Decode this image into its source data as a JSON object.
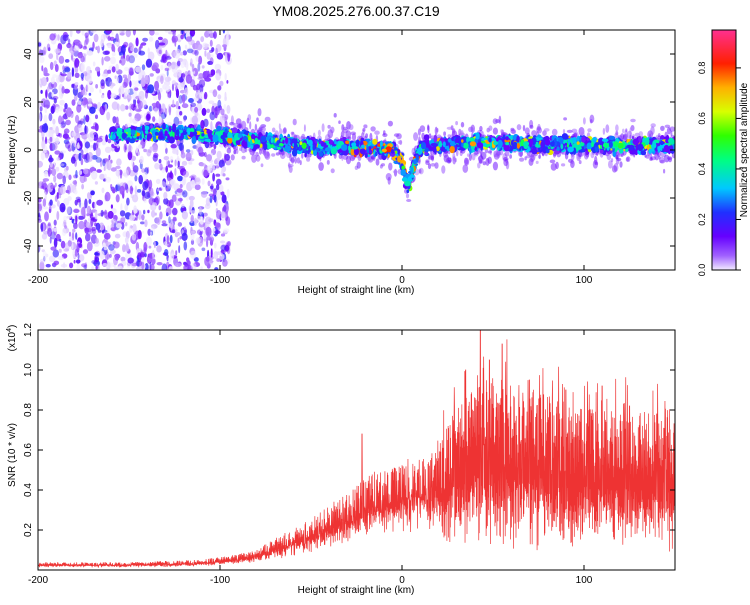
{
  "title": "YM08.2025.276.00.37.C19",
  "colors": {
    "snr_line": "#ee3333",
    "background": "#ffffff"
  },
  "chart_data": [
    {
      "type": "heatmap",
      "name": "spectrogram",
      "xlabel": "Height of straight line (km)",
      "ylabel": "Frequency (Hz)",
      "xlim": [
        -200,
        150
      ],
      "ylim": [
        -50,
        50
      ],
      "xticks": [
        -200,
        -100,
        0,
        100
      ],
      "yticks": [
        -40,
        -20,
        0,
        20,
        40
      ],
      "colorbar": {
        "label": "Normalized spectral amplitude",
        "range": [
          0,
          0.95
        ],
        "ticks": [
          "0.0",
          "0.2",
          "0.4",
          "0.6",
          "0.8"
        ],
        "colormap": "rainbow (violet -> blue -> cyan -> green -> yellow -> red -> pink)"
      },
      "ridge_center_hz": [
        [
          -160,
          6
        ],
        [
          -140,
          7
        ],
        [
          -120,
          7
        ],
        [
          -100,
          6
        ],
        [
          -80,
          4
        ],
        [
          -60,
          2
        ],
        [
          -40,
          1
        ],
        [
          -20,
          1
        ],
        [
          -5,
          0
        ],
        [
          0,
          -5
        ],
        [
          2,
          -12
        ],
        [
          4,
          -15
        ],
        [
          6,
          -8
        ],
        [
          10,
          1
        ],
        [
          20,
          2
        ],
        [
          40,
          3
        ],
        [
          60,
          3
        ],
        [
          80,
          2
        ],
        [
          100,
          2
        ],
        [
          120,
          2
        ],
        [
          150,
          2
        ]
      ],
      "noise_region_x": [
        -200,
        -95
      ]
    },
    {
      "type": "line",
      "name": "snr",
      "xlabel": "Height of straight line (km)",
      "ylabel": "SNR (10 * v/v)",
      "scale_label": "(x10",
      "scale_exponent": "4",
      "xlim": [
        -200,
        150
      ],
      "ylim": [
        0,
        1.2
      ],
      "xticks": [
        -200,
        -100,
        0,
        100
      ],
      "yticks": [
        "0.2",
        "0.4",
        "0.6",
        "0.8",
        "1.0",
        "1.2"
      ],
      "envelope": [
        [
          -200,
          0.03
        ],
        [
          -150,
          0.03
        ],
        [
          -110,
          0.04
        ],
        [
          -90,
          0.06
        ],
        [
          -80,
          0.08
        ],
        [
          -70,
          0.12
        ],
        [
          -50,
          0.2
        ],
        [
          -30,
          0.3
        ],
        [
          -15,
          0.38
        ],
        [
          -5,
          0.4
        ],
        [
          0,
          0.42
        ],
        [
          10,
          0.45
        ],
        [
          20,
          0.5
        ],
        [
          30,
          0.62
        ],
        [
          40,
          0.75
        ],
        [
          50,
          0.75
        ],
        [
          70,
          0.7
        ],
        [
          100,
          0.62
        ],
        [
          130,
          0.62
        ],
        [
          150,
          0.62
        ]
      ],
      "peaks": [
        [
          -22,
          0.68
        ],
        [
          35,
          1.0
        ],
        [
          43,
          1.22
        ],
        [
          48,
          1.05
        ],
        [
          55,
          1.13
        ],
        [
          70,
          0.95
        ],
        [
          90,
          0.9
        ],
        [
          110,
          0.92
        ],
        [
          125,
          0.82
        ],
        [
          140,
          0.78
        ]
      ]
    }
  ]
}
